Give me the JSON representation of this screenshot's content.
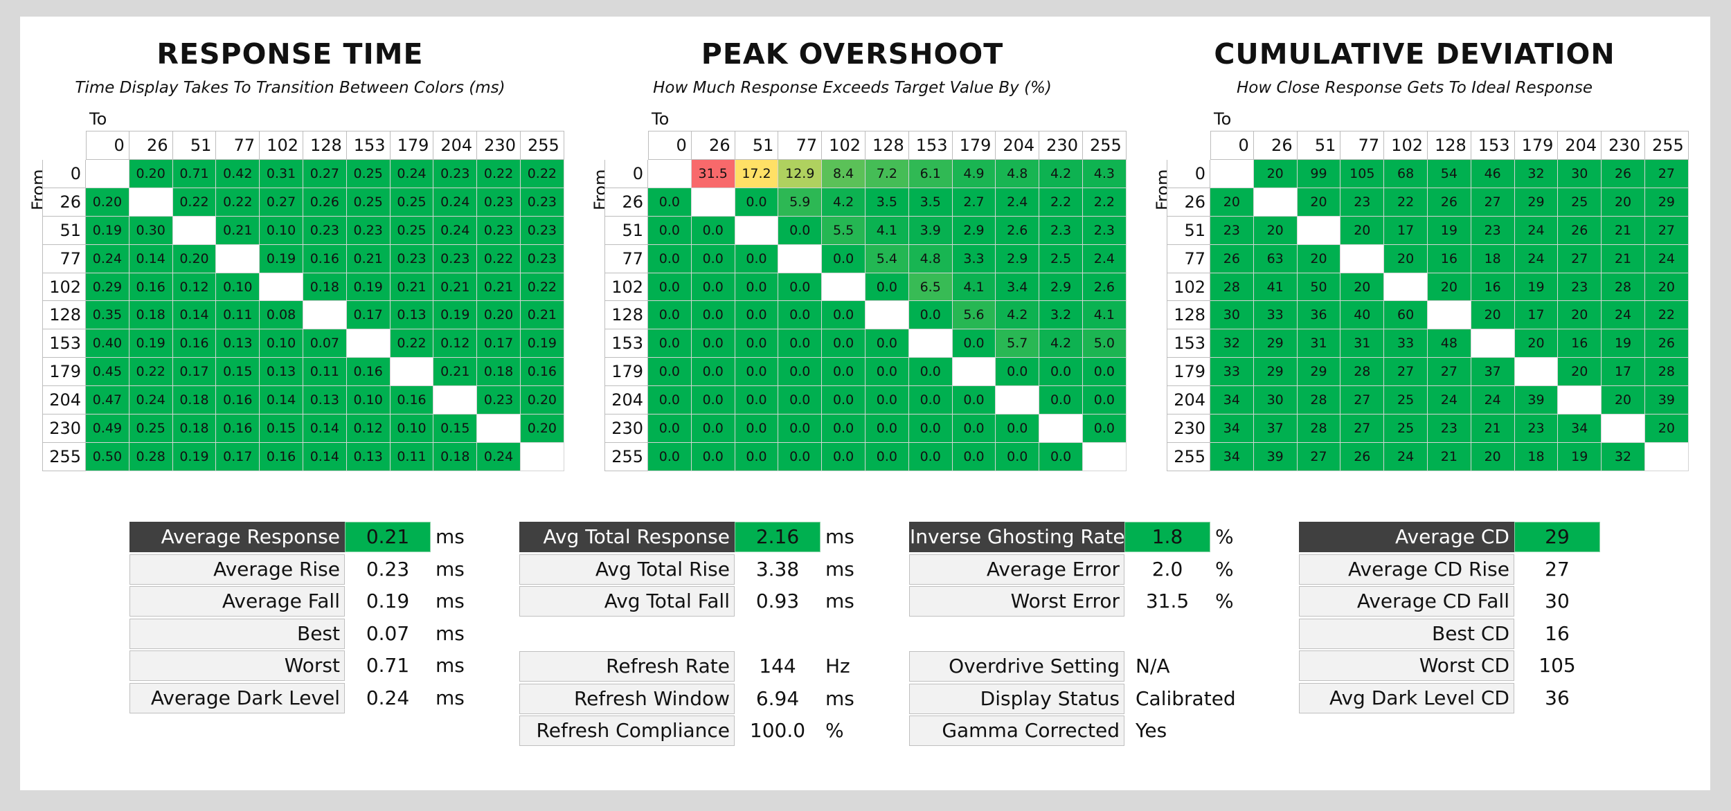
{
  "levels": [
    "0",
    "26",
    "51",
    "77",
    "102",
    "128",
    "153",
    "179",
    "204",
    "230",
    "255"
  ],
  "to_label": "To",
  "from_label": "From",
  "chart_data": [
    {
      "type": "heatmap",
      "title": "RESPONSE TIME",
      "subtitle": "Time Display Takes To Transition Between Colors (ms)",
      "x_categories": [
        "0",
        "26",
        "51",
        "77",
        "102",
        "128",
        "153",
        "179",
        "204",
        "230",
        "255"
      ],
      "y_categories": [
        "0",
        "26",
        "51",
        "77",
        "102",
        "128",
        "153",
        "179",
        "204",
        "230",
        "255"
      ],
      "xlabel": "To",
      "ylabel": "From",
      "values": [
        [
          null,
          "0.20",
          "0.71",
          "0.42",
          "0.31",
          "0.27",
          "0.25",
          "0.24",
          "0.23",
          "0.22",
          "0.22"
        ],
        [
          "0.20",
          null,
          "0.22",
          "0.22",
          "0.27",
          "0.26",
          "0.25",
          "0.25",
          "0.24",
          "0.23",
          "0.23"
        ],
        [
          "0.19",
          "0.30",
          null,
          "0.21",
          "0.10",
          "0.23",
          "0.23",
          "0.25",
          "0.24",
          "0.23",
          "0.23"
        ],
        [
          "0.24",
          "0.14",
          "0.20",
          null,
          "0.19",
          "0.16",
          "0.21",
          "0.23",
          "0.23",
          "0.22",
          "0.23"
        ],
        [
          "0.29",
          "0.16",
          "0.12",
          "0.10",
          null,
          "0.18",
          "0.19",
          "0.21",
          "0.21",
          "0.21",
          "0.22"
        ],
        [
          "0.35",
          "0.18",
          "0.14",
          "0.11",
          "0.08",
          null,
          "0.17",
          "0.13",
          "0.19",
          "0.20",
          "0.21"
        ],
        [
          "0.40",
          "0.19",
          "0.16",
          "0.13",
          "0.10",
          "0.07",
          null,
          "0.22",
          "0.12",
          "0.17",
          "0.19"
        ],
        [
          "0.45",
          "0.22",
          "0.17",
          "0.15",
          "0.13",
          "0.11",
          "0.16",
          null,
          "0.21",
          "0.18",
          "0.16"
        ],
        [
          "0.47",
          "0.24",
          "0.18",
          "0.16",
          "0.14",
          "0.13",
          "0.10",
          "0.16",
          null,
          "0.23",
          "0.20"
        ],
        [
          "0.49",
          "0.25",
          "0.18",
          "0.16",
          "0.15",
          "0.14",
          "0.12",
          "0.10",
          "0.15",
          null,
          "0.20"
        ],
        [
          "0.50",
          "0.28",
          "0.19",
          "0.17",
          "0.16",
          "0.14",
          "0.13",
          "0.11",
          "0.18",
          "0.24",
          null
        ]
      ],
      "colors": {
        "default": "#00b050",
        "diagonal": "#ffffff"
      }
    },
    {
      "type": "heatmap",
      "title": "PEAK OVERSHOOT",
      "subtitle": "How Much Response Exceeds Target Value By (%)",
      "x_categories": [
        "0",
        "26",
        "51",
        "77",
        "102",
        "128",
        "153",
        "179",
        "204",
        "230",
        "255"
      ],
      "y_categories": [
        "0",
        "26",
        "51",
        "77",
        "102",
        "128",
        "153",
        "179",
        "204",
        "230",
        "255"
      ],
      "xlabel": "To",
      "ylabel": "From",
      "values": [
        [
          null,
          "31.5",
          "17.2",
          "12.9",
          "8.4",
          "7.2",
          "6.1",
          "4.9",
          "4.8",
          "4.2",
          "4.3"
        ],
        [
          "0.0",
          null,
          "0.0",
          "5.9",
          "4.2",
          "3.5",
          "3.5",
          "2.7",
          "2.4",
          "2.2",
          "2.2"
        ],
        [
          "0.0",
          "0.0",
          null,
          "0.0",
          "5.5",
          "4.1",
          "3.9",
          "2.9",
          "2.6",
          "2.3",
          "2.3"
        ],
        [
          "0.0",
          "0.0",
          "0.0",
          null,
          "0.0",
          "5.4",
          "4.8",
          "3.3",
          "2.9",
          "2.5",
          "2.4"
        ],
        [
          "0.0",
          "0.0",
          "0.0",
          "0.0",
          null,
          "0.0",
          "6.5",
          "4.1",
          "3.4",
          "2.9",
          "2.6"
        ],
        [
          "0.0",
          "0.0",
          "0.0",
          "0.0",
          "0.0",
          null,
          "0.0",
          "5.6",
          "4.2",
          "3.2",
          "4.1"
        ],
        [
          "0.0",
          "0.0",
          "0.0",
          "0.0",
          "0.0",
          "0.0",
          null,
          "0.0",
          "5.7",
          "4.2",
          "5.0"
        ],
        [
          "0.0",
          "0.0",
          "0.0",
          "0.0",
          "0.0",
          "0.0",
          "0.0",
          null,
          "0.0",
          "0.0",
          "0.0"
        ],
        [
          "0.0",
          "0.0",
          "0.0",
          "0.0",
          "0.0",
          "0.0",
          "0.0",
          "0.0",
          null,
          "0.0",
          "0.0"
        ],
        [
          "0.0",
          "0.0",
          "0.0",
          "0.0",
          "0.0",
          "0.0",
          "0.0",
          "0.0",
          "0.0",
          null,
          "0.0"
        ],
        [
          "0.0",
          "0.0",
          "0.0",
          "0.0",
          "0.0",
          "0.0",
          "0.0",
          "0.0",
          "0.0",
          "0.0",
          null
        ]
      ],
      "colors": {
        "low": "#00b050",
        "mid": "#ffe066",
        "high": "#f8696b",
        "diagonal": "#ffffff"
      }
    },
    {
      "type": "heatmap",
      "title": "CUMULATIVE DEVIATION",
      "subtitle": "How Close Response Gets To Ideal Response",
      "x_categories": [
        "0",
        "26",
        "51",
        "77",
        "102",
        "128",
        "153",
        "179",
        "204",
        "230",
        "255"
      ],
      "y_categories": [
        "0",
        "26",
        "51",
        "77",
        "102",
        "128",
        "153",
        "179",
        "204",
        "230",
        "255"
      ],
      "xlabel": "To",
      "ylabel": "From",
      "values": [
        [
          null,
          "20",
          "99",
          "105",
          "68",
          "54",
          "46",
          "32",
          "30",
          "26",
          "27"
        ],
        [
          "20",
          null,
          "20",
          "23",
          "22",
          "26",
          "27",
          "29",
          "25",
          "20",
          "29"
        ],
        [
          "23",
          "20",
          null,
          "20",
          "17",
          "19",
          "23",
          "24",
          "26",
          "21",
          "27"
        ],
        [
          "26",
          "63",
          "20",
          null,
          "20",
          "16",
          "18",
          "24",
          "27",
          "21",
          "24"
        ],
        [
          "28",
          "41",
          "50",
          "20",
          null,
          "20",
          "16",
          "19",
          "23",
          "28",
          "20"
        ],
        [
          "30",
          "33",
          "36",
          "40",
          "60",
          null,
          "20",
          "17",
          "20",
          "24",
          "22"
        ],
        [
          "32",
          "29",
          "31",
          "31",
          "33",
          "48",
          null,
          "20",
          "16",
          "19",
          "26"
        ],
        [
          "33",
          "29",
          "29",
          "28",
          "27",
          "27",
          "37",
          null,
          "20",
          "17",
          "28"
        ],
        [
          "34",
          "30",
          "28",
          "27",
          "25",
          "24",
          "24",
          "39",
          null,
          "20",
          "39"
        ],
        [
          "34",
          "37",
          "28",
          "27",
          "25",
          "23",
          "21",
          "23",
          "34",
          null,
          "20"
        ],
        [
          "34",
          "39",
          "27",
          "26",
          "24",
          "21",
          "20",
          "18",
          "19",
          "32",
          null
        ]
      ],
      "colors": {
        "default": "#00b050",
        "diagonal": "#ffffff"
      }
    }
  ],
  "stats": {
    "response": [
      {
        "label": "Average Response",
        "value": "0.21",
        "unit": "ms",
        "highlight": true
      },
      {
        "label": "Average Rise",
        "value": "0.23",
        "unit": "ms"
      },
      {
        "label": "Average Fall",
        "value": "0.19",
        "unit": "ms"
      },
      {
        "label": "Best",
        "value": "0.07",
        "unit": "ms"
      },
      {
        "label": "Worst",
        "value": "0.71",
        "unit": "ms"
      },
      {
        "label": "Average Dark Level",
        "value": "0.24",
        "unit": "ms"
      }
    ],
    "total": [
      {
        "label": "Avg Total Response",
        "value": "2.16",
        "unit": "ms",
        "highlight": true
      },
      {
        "label": "Avg Total Rise",
        "value": "3.38",
        "unit": "ms"
      },
      {
        "label": "Avg Total Fall",
        "value": "0.93",
        "unit": "ms"
      }
    ],
    "refresh": [
      {
        "label": "Refresh Rate",
        "value": "144",
        "unit": "Hz"
      },
      {
        "label": "Refresh Window",
        "value": "6.94",
        "unit": "ms"
      },
      {
        "label": "Refresh Compliance",
        "value": "100.0",
        "unit": "%"
      }
    ],
    "ghosting": [
      {
        "label": "Inverse Ghosting Rate",
        "value": "1.8",
        "unit": "%",
        "highlight": true
      },
      {
        "label": "Average Error",
        "value": "2.0",
        "unit": "%"
      },
      {
        "label": "Worst Error",
        "value": "31.5",
        "unit": "%"
      }
    ],
    "settings": [
      {
        "label": "Overdrive Setting",
        "value": "N/A",
        "unit": ""
      },
      {
        "label": "Display Status",
        "value": "Calibrated",
        "unit": ""
      },
      {
        "label": "Gamma Corrected",
        "value": "Yes",
        "unit": ""
      }
    ],
    "cd": [
      {
        "label": "Average CD",
        "value": "29",
        "unit": "",
        "highlight": true
      },
      {
        "label": "Average CD Rise",
        "value": "27",
        "unit": ""
      },
      {
        "label": "Average CD Fall",
        "value": "30",
        "unit": ""
      },
      {
        "label": "Best CD",
        "value": "16",
        "unit": ""
      },
      {
        "label": "Worst CD",
        "value": "105",
        "unit": ""
      },
      {
        "label": "Avg Dark Level CD",
        "value": "36",
        "unit": ""
      }
    ]
  }
}
